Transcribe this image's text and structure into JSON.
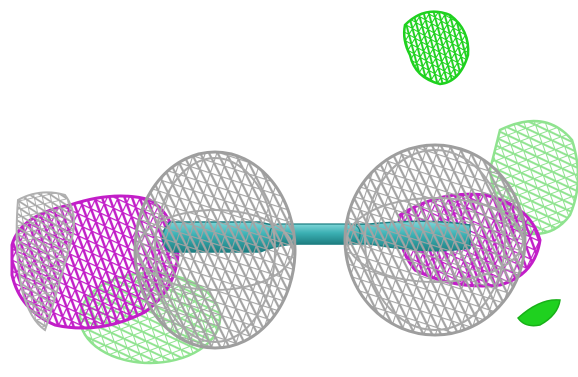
{
  "scene": {
    "subject": "electron-density-isomesh",
    "colors": {
      "background": "#ffffff",
      "mesh_grey": "#a9a9a9",
      "mesh_magenta": "#c21ec8",
      "mesh_light_green": "#8fe38f",
      "mesh_bright_green": "#1fd11f",
      "bond_teal": "#3bb0b3",
      "bond_teal_dark": "#1e7f82"
    }
  }
}
